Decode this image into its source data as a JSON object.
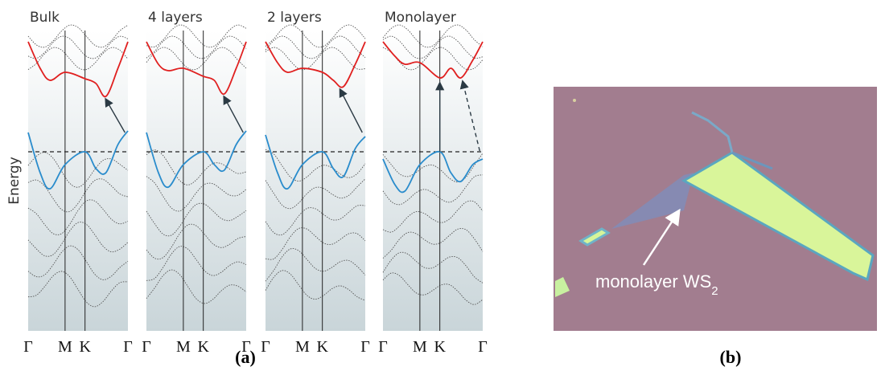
{
  "panel_a": {
    "label": "(a)",
    "y_axis_label": "Energy",
    "panels": [
      {
        "title": "Bulk"
      },
      {
        "title": "4 layers"
      },
      {
        "title": "2 layers"
      },
      {
        "title": "Monolayer"
      }
    ],
    "k_points": [
      "Γ",
      "M",
      "K",
      "Γ"
    ]
  },
  "panel_b": {
    "label": "(b)",
    "annotation": {
      "text": "monolayer WS",
      "subscript": "2"
    }
  }
}
